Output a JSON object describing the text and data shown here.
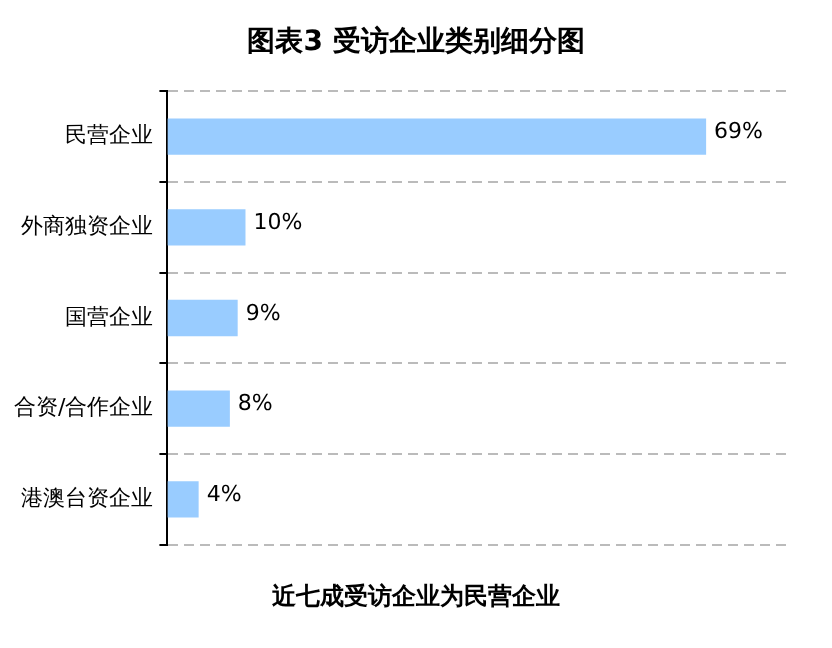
{
  "chart_data": {
    "type": "bar",
    "orientation": "horizontal",
    "title": "图表3  受访企业类别细分图",
    "categories": [
      "民营企业",
      "外商独资企业",
      "国营企业",
      "合资/合作企业",
      "港澳台资企业"
    ],
    "values": [
      69,
      10,
      9,
      8,
      4
    ],
    "color": "#99ccff",
    "value_labels": [
      "69%",
      "10%",
      "9%",
      "8%",
      "4%"
    ],
    "tick_labels": "y",
    "grid": "y",
    "annotations": [
      "近七成受访企业为民营企业"
    ]
  }
}
